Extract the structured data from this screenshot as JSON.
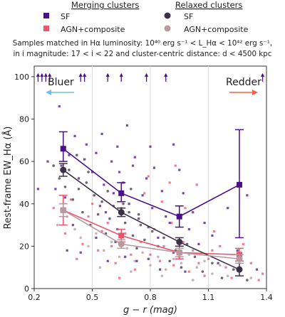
{
  "chart_data": {
    "type": "scatter",
    "legend": {
      "merging_title": "Merging clusters",
      "relaxed_title": "Relaxed clusters",
      "entries": [
        {
          "group": "merging",
          "label": "SF",
          "color": "#4b0f8a",
          "marker": "square"
        },
        {
          "group": "merging",
          "label": "AGN+composite",
          "color": "#e8566c",
          "marker": "square"
        },
        {
          "group": "relaxed",
          "label": "SF",
          "color": "#3c3046",
          "marker": "circle"
        },
        {
          "group": "relaxed",
          "label": "AGN+composite",
          "color": "#b8999f",
          "marker": "circle"
        }
      ],
      "placement": "top"
    },
    "subtitle_line1": "Samples matched in Hα luminosity: 10⁴⁰ erg s⁻¹ < L_Hα < 10⁴² erg s⁻¹,",
    "subtitle_line2": "in i magnitude: 17 < i < 22 and cluster-centric distance: d < 4500 kpc",
    "xlabel": "g − r (mag)",
    "ylabel": "Rest-frame EW_Hα (Å)",
    "xlim": [
      0.2,
      1.4
    ],
    "ylim": [
      0,
      105
    ],
    "xticks": [
      "0.2",
      "0.5",
      "0.8",
      "1.1",
      "1.4"
    ],
    "xtick_values": [
      0.2,
      0.5,
      0.8,
      1.1,
      1.4
    ],
    "yticks": [
      "0",
      "20",
      "40",
      "60",
      "80",
      "100"
    ],
    "ytick_values": [
      0,
      20,
      40,
      60,
      80,
      100
    ],
    "vertical_grid_x": [
      0.5,
      0.8,
      1.1
    ],
    "annotations": {
      "bluer": {
        "text": "Bluer",
        "color": "#6ec1e4"
      },
      "redder": {
        "text": "Redder",
        "color": "#f0644c"
      }
    },
    "upper_limit_x": [
      0.22,
      0.24,
      0.26,
      0.28,
      0.44,
      0.46,
      0.58,
      0.65,
      0.78,
      0.88,
      1.38
    ],
    "binned": [
      {
        "series": "Merging SF",
        "color": "#4b0f8a",
        "marker": "square",
        "x": [
          0.35,
          0.65,
          0.95,
          1.26
        ],
        "y": [
          66,
          45,
          34,
          49
        ],
        "yerr_low": [
          6,
          4,
          5,
          25
        ],
        "yerr_high": [
          8,
          5,
          5,
          26
        ]
      },
      {
        "series": "Merging AGN+composite",
        "color": "#e8566c",
        "marker": "square",
        "x": [
          0.35,
          0.65,
          0.95,
          1.26
        ],
        "y": [
          37,
          25,
          17,
          16
        ],
        "yerr_low": [
          7,
          3,
          3,
          3
        ],
        "yerr_high": [
          7,
          3,
          3,
          3
        ]
      },
      {
        "series": "Relaxed SF",
        "color": "#3c3046",
        "marker": "circle",
        "x": [
          0.35,
          0.65,
          0.95,
          1.26
        ],
        "y": [
          56,
          36,
          22,
          9
        ],
        "yerr_low": [
          3,
          2,
          2,
          3
        ],
        "yerr_high": [
          3,
          2,
          2,
          3
        ]
      },
      {
        "series": "Relaxed AGN+composite",
        "color": "#b8999f",
        "marker": "circle",
        "x": [
          0.35,
          0.65,
          0.95,
          1.26
        ],
        "y": [
          37,
          21,
          17,
          14
        ],
        "yerr_low": [
          3,
          2,
          2,
          2
        ],
        "yerr_high": [
          3,
          2,
          2,
          2
        ]
      }
    ],
    "scatter": {
      "merging_sf": {
        "color": "#4b0f8a",
        "points": [
          [
            0.22,
            47
          ],
          [
            0.27,
            60
          ],
          [
            0.31,
            47
          ],
          [
            0.33,
            86
          ],
          [
            0.34,
            58
          ],
          [
            0.36,
            43
          ],
          [
            0.37,
            18
          ],
          [
            0.38,
            63
          ],
          [
            0.41,
            72
          ],
          [
            0.43,
            52
          ],
          [
            0.46,
            61
          ],
          [
            0.47,
            68
          ],
          [
            0.5,
            55
          ],
          [
            0.52,
            64
          ],
          [
            0.54,
            39
          ],
          [
            0.56,
            49
          ],
          [
            0.57,
            36
          ],
          [
            0.58,
            13
          ],
          [
            0.6,
            60
          ],
          [
            0.61,
            45
          ],
          [
            0.63,
            67
          ],
          [
            0.64,
            55
          ],
          [
            0.66,
            50
          ],
          [
            0.67,
            15
          ],
          [
            0.69,
            40
          ],
          [
            0.71,
            58
          ],
          [
            0.72,
            62
          ],
          [
            0.74,
            33
          ],
          [
            0.76,
            44
          ],
          [
            0.78,
            52
          ],
          [
            0.79,
            29
          ],
          [
            0.81,
            38
          ],
          [
            0.82,
            57
          ],
          [
            0.84,
            24
          ],
          [
            0.86,
            46
          ],
          [
            0.88,
            34
          ],
          [
            0.9,
            31
          ],
          [
            0.92,
            17
          ],
          [
            0.95,
            56
          ],
          [
            0.97,
            45
          ],
          [
            1.0,
            28
          ],
          [
            1.02,
            36
          ],
          [
            1.05,
            21
          ],
          [
            1.08,
            31
          ],
          [
            1.12,
            25
          ],
          [
            1.15,
            12
          ],
          [
            1.2,
            38
          ],
          [
            1.25,
            18
          ],
          [
            1.3,
            44
          ],
          [
            1.35,
            9
          ],
          [
            0.44,
            17
          ],
          [
            0.52,
            24
          ],
          [
            0.62,
            22
          ],
          [
            0.73,
            13
          ],
          [
            0.85,
            9
          ],
          [
            0.98,
            8
          ],
          [
            0.4,
            30
          ],
          [
            0.55,
            73
          ],
          [
            0.68,
            77
          ],
          [
            0.8,
            67
          ],
          [
            0.92,
            68
          ]
        ]
      },
      "merging_agn": {
        "color": "#e8566c",
        "points": [
          [
            0.3,
            38
          ],
          [
            0.36,
            26
          ],
          [
            0.39,
            42
          ],
          [
            0.42,
            14
          ],
          [
            0.45,
            21
          ],
          [
            0.48,
            34
          ],
          [
            0.5,
            40
          ],
          [
            0.53,
            18
          ],
          [
            0.55,
            27
          ],
          [
            0.58,
            31
          ],
          [
            0.6,
            20
          ],
          [
            0.62,
            12
          ],
          [
            0.65,
            38
          ],
          [
            0.67,
            26
          ],
          [
            0.7,
            16
          ],
          [
            0.72,
            9
          ],
          [
            0.75,
            22
          ],
          [
            0.77,
            45
          ],
          [
            0.8,
            16
          ],
          [
            0.82,
            28
          ],
          [
            0.85,
            13
          ],
          [
            0.87,
            20
          ],
          [
            0.9,
            50
          ],
          [
            0.92,
            11
          ],
          [
            0.95,
            15
          ],
          [
            0.97,
            22
          ],
          [
            1.0,
            8
          ],
          [
            1.02,
            18
          ],
          [
            1.05,
            12
          ],
          [
            1.08,
            6
          ],
          [
            1.1,
            14
          ],
          [
            1.13,
            27
          ],
          [
            1.16,
            20
          ],
          [
            1.19,
            10
          ],
          [
            1.22,
            5
          ],
          [
            1.28,
            21
          ],
          [
            1.32,
            12
          ],
          [
            1.36,
            4
          ],
          [
            0.64,
            5
          ],
          [
            0.79,
            53
          ],
          [
            0.86,
            41
          ],
          [
            0.91,
            31
          ],
          [
            0.98,
            38
          ],
          [
            1.04,
            49
          ],
          [
            0.93,
            58
          ],
          [
            1.12,
            18
          ],
          [
            1.38,
            7
          ]
        ]
      },
      "relaxed_sf": {
        "color": "#3c3046",
        "points": [
          [
            0.3,
            58
          ],
          [
            0.33,
            52
          ],
          [
            0.36,
            48
          ],
          [
            0.38,
            56
          ],
          [
            0.4,
            42
          ],
          [
            0.43,
            47
          ],
          [
            0.45,
            36
          ],
          [
            0.47,
            50
          ],
          [
            0.49,
            30
          ],
          [
            0.51,
            44
          ],
          [
            0.53,
            35
          ],
          [
            0.55,
            41
          ],
          [
            0.57,
            26
          ],
          [
            0.59,
            33
          ],
          [
            0.61,
            39
          ],
          [
            0.63,
            28
          ],
          [
            0.65,
            22
          ],
          [
            0.67,
            31
          ],
          [
            0.69,
            36
          ],
          [
            0.71,
            25
          ],
          [
            0.73,
            19
          ],
          [
            0.75,
            30
          ],
          [
            0.77,
            23
          ],
          [
            0.79,
            14
          ],
          [
            0.81,
            27
          ],
          [
            0.84,
            20
          ],
          [
            0.87,
            24
          ],
          [
            0.9,
            13
          ],
          [
            0.93,
            18
          ],
          [
            0.96,
            10
          ],
          [
            0.99,
            21
          ],
          [
            1.03,
            15
          ],
          [
            1.07,
            8
          ],
          [
            1.12,
            12
          ],
          [
            1.17,
            5
          ],
          [
            1.23,
            9
          ],
          [
            1.3,
            4
          ],
          [
            0.42,
            63
          ],
          [
            0.48,
            55
          ],
          [
            0.58,
            46
          ],
          [
            0.66,
            40
          ],
          [
            0.74,
            35
          ],
          [
            0.7,
            47
          ]
        ]
      },
      "relaxed_agn": {
        "color": "#b8999f",
        "points": [
          [
            0.32,
            30
          ],
          [
            0.37,
            34
          ],
          [
            0.41,
            28
          ],
          [
            0.44,
            24
          ],
          [
            0.48,
            20
          ],
          [
            0.52,
            26
          ],
          [
            0.56,
            18
          ],
          [
            0.6,
            22
          ],
          [
            0.64,
            15
          ],
          [
            0.68,
            19
          ],
          [
            0.72,
            13
          ],
          [
            0.76,
            17
          ],
          [
            0.8,
            11
          ],
          [
            0.84,
            15
          ],
          [
            0.88,
            9
          ],
          [
            0.92,
            14
          ],
          [
            0.96,
            12
          ],
          [
            1.0,
            16
          ],
          [
            1.04,
            10
          ],
          [
            1.08,
            13
          ],
          [
            1.12,
            7
          ],
          [
            1.16,
            11
          ],
          [
            1.2,
            6
          ],
          [
            1.26,
            9
          ],
          [
            1.32,
            5
          ],
          [
            0.54,
            10
          ],
          [
            0.7,
            8
          ],
          [
            0.86,
            6
          ],
          [
            1.02,
            4
          ]
        ]
      }
    }
  }
}
